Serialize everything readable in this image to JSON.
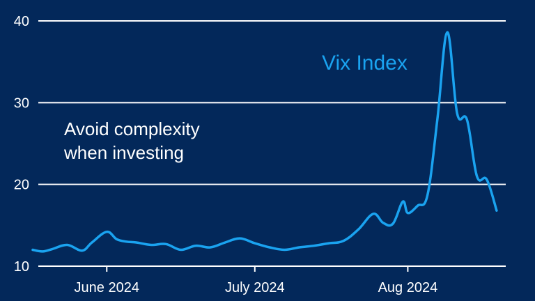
{
  "chart_data": {
    "type": "line",
    "title": "",
    "xlabel": "",
    "ylabel": "",
    "ylim": [
      10,
      40
    ],
    "y_ticks": [
      "10",
      "20",
      "30",
      "40"
    ],
    "x_ticks": [
      {
        "label": "June 2024",
        "date": "2024-06-01"
      },
      {
        "label": "July 2024",
        "date": "2024-07-01"
      },
      {
        "label": "Aug 2024",
        "date": "2024-08-01"
      }
    ],
    "grid": "horizontal",
    "annotation": "Avoid complexity\nwhen investing",
    "series": [
      {
        "name": "Vix Index",
        "color": "#1aa3f0",
        "x": [
          "2024-05-17",
          "2024-05-19",
          "2024-05-21",
          "2024-05-24",
          "2024-05-27",
          "2024-05-29",
          "2024-06-01",
          "2024-06-03",
          "2024-06-05",
          "2024-06-07",
          "2024-06-10",
          "2024-06-13",
          "2024-06-16",
          "2024-06-19",
          "2024-06-22",
          "2024-06-25",
          "2024-06-28",
          "2024-07-01",
          "2024-07-04",
          "2024-07-07",
          "2024-07-10",
          "2024-07-13",
          "2024-07-16",
          "2024-07-19",
          "2024-07-22",
          "2024-07-25",
          "2024-07-27",
          "2024-07-29",
          "2024-07-31",
          "2024-08-01",
          "2024-08-03",
          "2024-08-05",
          "2024-08-07",
          "2024-08-09",
          "2024-08-11",
          "2024-08-13",
          "2024-08-15",
          "2024-08-17",
          "2024-08-19"
        ],
        "values": [
          12.0,
          11.8,
          12.1,
          12.6,
          11.9,
          12.9,
          14.2,
          13.3,
          13.0,
          12.9,
          12.6,
          12.7,
          12.0,
          12.5,
          12.3,
          12.9,
          13.4,
          12.8,
          12.3,
          12.0,
          12.3,
          12.5,
          12.8,
          13.1,
          14.5,
          16.4,
          15.3,
          15.2,
          17.9,
          16.5,
          17.4,
          18.7,
          28.0,
          38.6,
          28.7,
          27.9,
          21.0,
          20.6,
          16.8
        ]
      }
    ]
  }
}
